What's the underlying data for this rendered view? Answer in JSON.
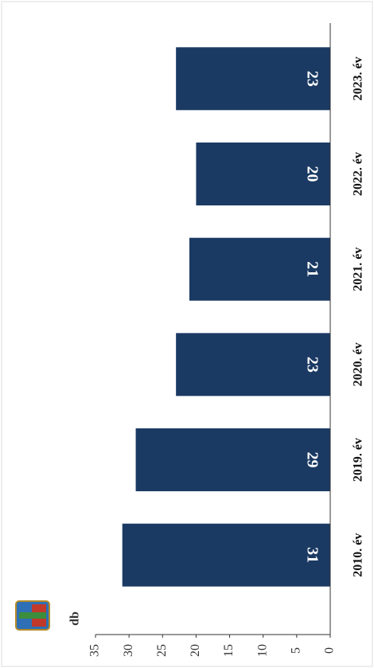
{
  "chart_data": {
    "type": "bar",
    "y_label": "db",
    "categories": [
      "2010. év",
      "2019. év",
      "2020. év",
      "2021. év",
      "2022. év",
      "2023. év"
    ],
    "values": [
      31,
      29,
      23,
      21,
      20,
      23
    ],
    "color": "#1b3a63",
    "ylim": [
      0,
      35
    ],
    "yticks": [
      0,
      5,
      10,
      15,
      20,
      25,
      30,
      35
    ]
  }
}
